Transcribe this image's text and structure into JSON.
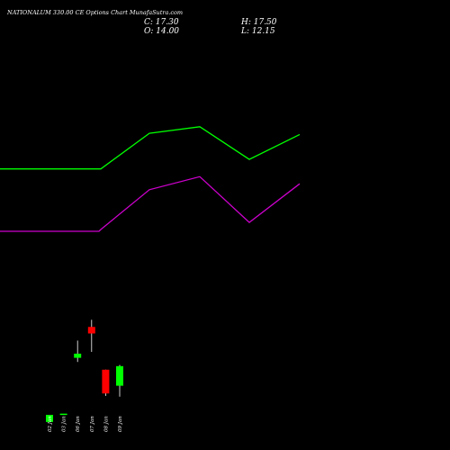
{
  "header": {
    "title": "NATIONALUM 330.00 CE Options Chart MunafaSutra.com",
    "close": "C: 17.30",
    "open": "O: 14.00",
    "high": "H: 17.50",
    "low": "L: 12.15"
  },
  "chart_data": {
    "type": "candlestick",
    "categories": [
      "02 Jan",
      "03 Jan",
      "06 Jan",
      "07 Jan",
      "08 Jan",
      "09 Jan"
    ],
    "candles": [
      {
        "date": "02 Jan",
        "open": 7.9,
        "high": 9.1,
        "low": 7.9,
        "close": 9.1,
        "color": "#00ff00"
      },
      {
        "date": "03 Jan",
        "open": 9.3,
        "high": 9.3,
        "low": 9.3,
        "close": 9.3,
        "color": "#00ff00"
      },
      {
        "date": "06 Jan",
        "open": 18.7,
        "high": 21.6,
        "low": 18.0,
        "close": 19.4,
        "color": "#00ff00"
      },
      {
        "date": "07 Jan",
        "open": 23.9,
        "high": 25.1,
        "low": 19.7,
        "close": 22.8,
        "color": "#ff0000"
      },
      {
        "date": "08 Jan",
        "open": 16.7,
        "high": 16.7,
        "low": 12.3,
        "close": 12.7,
        "color": "#ff0000"
      },
      {
        "date": "09 Jan",
        "open": 14.0,
        "high": 17.5,
        "low": 12.15,
        "close": 17.3,
        "color": "#00ff00"
      }
    ],
    "lines": [
      {
        "color": "#00ff00",
        "points": [
          {
            "x": 0,
            "y": 50.5
          },
          {
            "x": 1,
            "y": 50.5
          },
          {
            "x": 2,
            "y": 50.5
          },
          {
            "x": 3,
            "y": 50.5
          },
          {
            "x": 4,
            "y": 56.5
          },
          {
            "x": 5,
            "y": 57.6
          },
          {
            "x": 6,
            "y": 52.1
          },
          {
            "x": 7,
            "y": 56.3
          }
        ]
      },
      {
        "color": "#cc00cc",
        "points": [
          {
            "x": 0,
            "y": 40.0
          },
          {
            "x": 1,
            "y": 40.0
          },
          {
            "x": 2,
            "y": 40.0
          },
          {
            "x": 3,
            "y": 40.3
          },
          {
            "x": 4,
            "y": 47.0
          },
          {
            "x": 5,
            "y": 49.2
          },
          {
            "x": 6,
            "y": 41.5
          },
          {
            "x": 7,
            "y": 48.0
          }
        ]
      }
    ],
    "ylim": [
      0,
      70
    ],
    "grid": false,
    "background": "#000000"
  }
}
